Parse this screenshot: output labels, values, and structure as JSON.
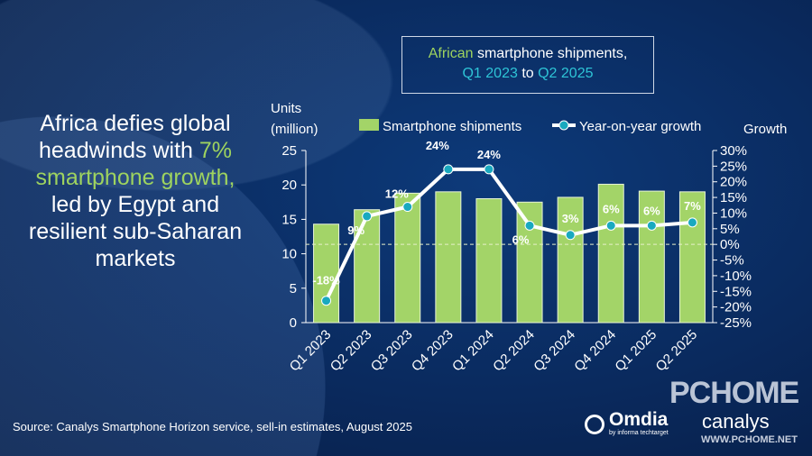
{
  "title": {
    "part1": "African",
    "part2": " smartphone shipments,",
    "part3": "Q1 2023",
    "part4": " to ",
    "part5": "Q2 2025"
  },
  "headline": {
    "a": "Africa defies global headwinds with ",
    "b": "7% smartphone growth,",
    "c": " led by Egypt and resilient sub-Saharan markets"
  },
  "source": "Source: Canalys Smartphone Horizon service, sell-in estimates, August 2025",
  "logos": {
    "omdia": "Omdia",
    "omdia_sub": "by informa techtarget",
    "canalys": "canalys",
    "watermark": "PCHOME",
    "watermark_url": "WWW.PCHOME.NET"
  },
  "colors": {
    "bar": "#a3d468",
    "line": "#ffffff",
    "marker": "#19a9bf",
    "title_green": "#9ed35f",
    "title_cyan": "#2ec4d6"
  },
  "chart_data": {
    "type": "bar+line",
    "categories": [
      "Q1 2023",
      "Q2 2023",
      "Q3 2023",
      "Q4 2023",
      "Q1 2024",
      "Q2 2024",
      "Q3 2024",
      "Q4 2024",
      "Q1 2025",
      "Q2 2025"
    ],
    "series": [
      {
        "name": "Smartphone shipments",
        "type": "bar",
        "axis": "left",
        "values": [
          14.3,
          16.4,
          18.8,
          19.0,
          18.0,
          17.5,
          18.2,
          20.1,
          19.1,
          19.0
        ]
      },
      {
        "name": "Year-on-year growth",
        "type": "line",
        "axis": "right",
        "values": [
          -18,
          9,
          12,
          24,
          24,
          6,
          3,
          6,
          6,
          7
        ],
        "labels": [
          "-18%",
          "9%",
          "12%",
          "24%",
          "24%",
          "6%",
          "3%",
          "6%",
          "6%",
          "7%"
        ]
      }
    ],
    "ylabel_left": "Units (million)",
    "ylabel_left_line1": "Units",
    "ylabel_left_line2": "(million)",
    "ylabel_right": "Growth",
    "ylim_left": [
      0,
      25
    ],
    "yticks_left": [
      "0",
      "5",
      "10",
      "15",
      "20",
      "25"
    ],
    "ylim_right": [
      -25,
      30
    ],
    "yticks_right": [
      "-25%",
      "-20%",
      "-15%",
      "-10%",
      "-5%",
      "0%",
      "5%",
      "10%",
      "15%",
      "20%",
      "25%",
      "30%"
    ],
    "zero_line": "dashed",
    "legend": "top",
    "grid": false
  }
}
